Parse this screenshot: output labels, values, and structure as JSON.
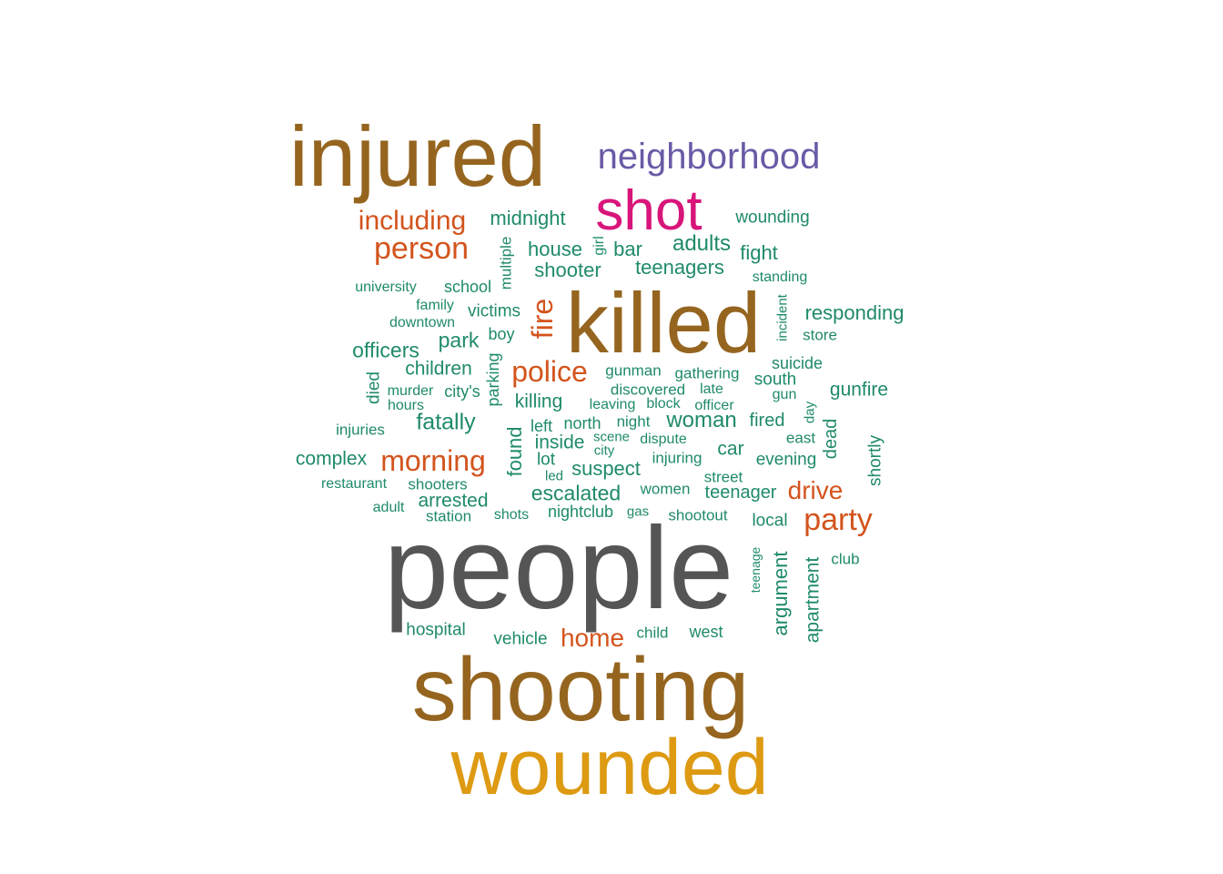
{
  "colors": {
    "brown": "#95651f",
    "gray": "#555555",
    "gold": "#dd9a12",
    "magenta": "#d8157a",
    "purple": "#6a5aa6",
    "orange": "#d3541d",
    "teal": "#1f8a6b"
  },
  "words": [
    {
      "text": "people",
      "color": "gray"
    },
    {
      "text": "shooting",
      "color": "brown"
    },
    {
      "text": "killed",
      "color": "brown"
    },
    {
      "text": "injured",
      "color": "brown"
    },
    {
      "text": "wounded",
      "color": "gold"
    },
    {
      "text": "shot",
      "color": "magenta"
    },
    {
      "text": "neighborhood",
      "color": "purple"
    },
    {
      "text": "person",
      "color": "orange"
    },
    {
      "text": "including",
      "color": "orange"
    },
    {
      "text": "police",
      "color": "orange"
    },
    {
      "text": "morning",
      "color": "orange"
    },
    {
      "text": "party",
      "color": "orange"
    },
    {
      "text": "home",
      "color": "orange"
    },
    {
      "text": "drive",
      "color": "orange"
    },
    {
      "text": "fire",
      "color": "orange"
    },
    {
      "text": "midnight",
      "color": "teal"
    },
    {
      "text": "wounding",
      "color": "teal"
    },
    {
      "text": "house",
      "color": "teal"
    },
    {
      "text": "girl",
      "color": "teal"
    },
    {
      "text": "bar",
      "color": "teal"
    },
    {
      "text": "adults",
      "color": "teal"
    },
    {
      "text": "fight",
      "color": "teal"
    },
    {
      "text": "multiple",
      "color": "teal"
    },
    {
      "text": "shooter",
      "color": "teal"
    },
    {
      "text": "teenagers",
      "color": "teal"
    },
    {
      "text": "standing",
      "color": "teal"
    },
    {
      "text": "university",
      "color": "teal"
    },
    {
      "text": "school",
      "color": "teal"
    },
    {
      "text": "family",
      "color": "teal"
    },
    {
      "text": "victims",
      "color": "teal"
    },
    {
      "text": "incident",
      "color": "teal"
    },
    {
      "text": "responding",
      "color": "teal"
    },
    {
      "text": "downtown",
      "color": "teal"
    },
    {
      "text": "boy",
      "color": "teal"
    },
    {
      "text": "store",
      "color": "teal"
    },
    {
      "text": "officers",
      "color": "teal"
    },
    {
      "text": "park",
      "color": "teal"
    },
    {
      "text": "parking",
      "color": "teal"
    },
    {
      "text": "suicide",
      "color": "teal"
    },
    {
      "text": "children",
      "color": "teal"
    },
    {
      "text": "gunman",
      "color": "teal"
    },
    {
      "text": "gathering",
      "color": "teal"
    },
    {
      "text": "south",
      "color": "teal"
    },
    {
      "text": "died",
      "color": "teal"
    },
    {
      "text": "murder",
      "color": "teal"
    },
    {
      "text": "city's",
      "color": "teal"
    },
    {
      "text": "discovered",
      "color": "teal"
    },
    {
      "text": "late",
      "color": "teal"
    },
    {
      "text": "gun",
      "color": "teal"
    },
    {
      "text": "gunfire",
      "color": "teal"
    },
    {
      "text": "hours",
      "color": "teal"
    },
    {
      "text": "killing",
      "color": "teal"
    },
    {
      "text": "leaving",
      "color": "teal"
    },
    {
      "text": "block",
      "color": "teal"
    },
    {
      "text": "officer",
      "color": "teal"
    },
    {
      "text": "day",
      "color": "teal"
    },
    {
      "text": "injuries",
      "color": "teal"
    },
    {
      "text": "fatally",
      "color": "teal"
    },
    {
      "text": "left",
      "color": "teal"
    },
    {
      "text": "north",
      "color": "teal"
    },
    {
      "text": "night",
      "color": "teal"
    },
    {
      "text": "woman",
      "color": "teal"
    },
    {
      "text": "fired",
      "color": "teal"
    },
    {
      "text": "dead",
      "color": "teal"
    },
    {
      "text": "found",
      "color": "teal"
    },
    {
      "text": "inside",
      "color": "teal"
    },
    {
      "text": "scene",
      "color": "teal"
    },
    {
      "text": "dispute",
      "color": "teal"
    },
    {
      "text": "east",
      "color": "teal"
    },
    {
      "text": "city",
      "color": "teal"
    },
    {
      "text": "car",
      "color": "teal"
    },
    {
      "text": "shortly",
      "color": "teal"
    },
    {
      "text": "complex",
      "color": "teal"
    },
    {
      "text": "lot",
      "color": "teal"
    },
    {
      "text": "injuring",
      "color": "teal"
    },
    {
      "text": "evening",
      "color": "teal"
    },
    {
      "text": "suspect",
      "color": "teal"
    },
    {
      "text": "led",
      "color": "teal"
    },
    {
      "text": "street",
      "color": "teal"
    },
    {
      "text": "restaurant",
      "color": "teal"
    },
    {
      "text": "shooters",
      "color": "teal"
    },
    {
      "text": "women",
      "color": "teal"
    },
    {
      "text": "escalated",
      "color": "teal"
    },
    {
      "text": "teenager",
      "color": "teal"
    },
    {
      "text": "arrested",
      "color": "teal"
    },
    {
      "text": "adult",
      "color": "teal"
    },
    {
      "text": "station",
      "color": "teal"
    },
    {
      "text": "shots",
      "color": "teal"
    },
    {
      "text": "nightclub",
      "color": "teal"
    },
    {
      "text": "gas",
      "color": "teal"
    },
    {
      "text": "shootout",
      "color": "teal"
    },
    {
      "text": "local",
      "color": "teal"
    },
    {
      "text": "club",
      "color": "teal"
    },
    {
      "text": "teenage",
      "color": "teal"
    },
    {
      "text": "argument",
      "color": "teal"
    },
    {
      "text": "apartment",
      "color": "teal"
    },
    {
      "text": "hospital",
      "color": "teal"
    },
    {
      "text": "vehicle",
      "color": "teal"
    },
    {
      "text": "child",
      "color": "teal"
    },
    {
      "text": "west",
      "color": "teal"
    }
  ]
}
